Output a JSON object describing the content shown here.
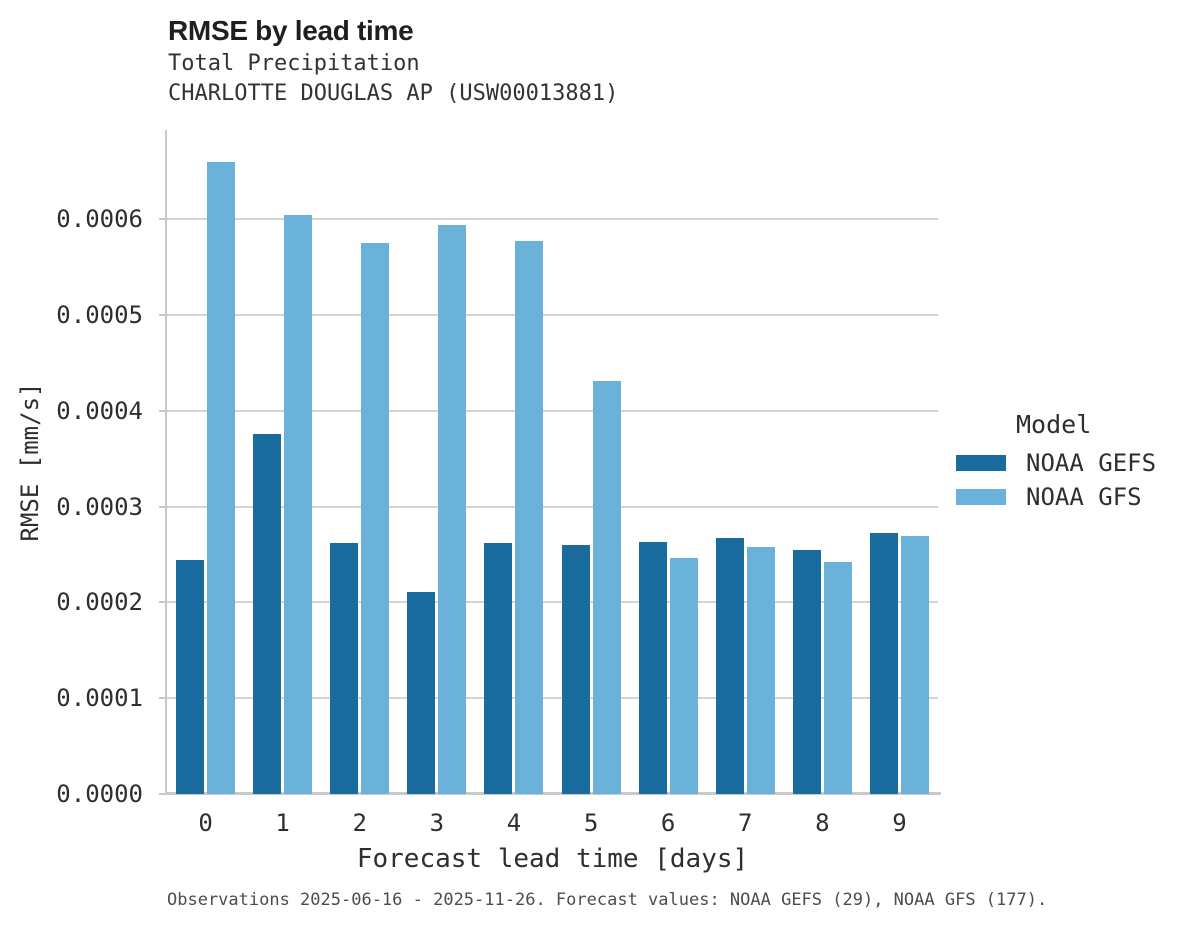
{
  "header": {
    "title": "RMSE by lead time",
    "subtitle": "Total Precipitation",
    "station": "CHARLOTTE DOUGLAS AP (USW00013881)"
  },
  "caption": "Observations 2025-06-16 - 2025-11-26. Forecast values: NOAA GEFS (29), NOAA GFS (177).",
  "chart_data": {
    "type": "bar",
    "title": "RMSE by lead time",
    "subtitle": "Total Precipitation",
    "station": "CHARLOTTE DOUGLAS AP (USW00013881)",
    "xlabel": "Forecast lead time [days]",
    "ylabel": "RMSE [mm/s]",
    "categories": [
      "0",
      "1",
      "2",
      "3",
      "4",
      "5",
      "6",
      "7",
      "8",
      "9"
    ],
    "series": [
      {
        "name": "NOAA GEFS",
        "color": "#1a6c9e",
        "values": [
          0.000244,
          0.000376,
          0.000262,
          0.000211,
          0.000262,
          0.00026,
          0.000263,
          0.000267,
          0.000255,
          0.000272
        ]
      },
      {
        "name": "NOAA GFS",
        "color": "#6ab2d9",
        "values": [
          0.00066,
          0.000604,
          0.000575,
          0.000594,
          0.000577,
          0.000431,
          0.000246,
          0.000258,
          0.000242,
          0.000269
        ]
      }
    ],
    "ylim": [
      0,
      0.000693
    ],
    "yticks": [
      0.0,
      0.0001,
      0.0002,
      0.0003,
      0.0004,
      0.0005,
      0.0006
    ],
    "ytick_decimals": 4,
    "grid": true,
    "legend": {
      "title": "Model",
      "position": "right"
    }
  },
  "colors": {
    "grid": "#d4d4d4",
    "spine": "#c9c9c9",
    "text": "#2e2e2e"
  }
}
